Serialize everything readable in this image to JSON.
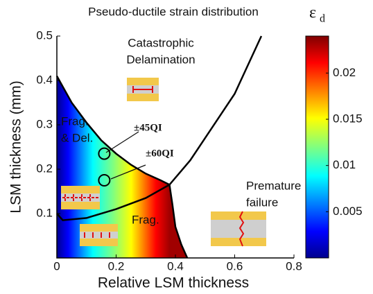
{
  "chart_data": {
    "type": "contour",
    "title": "Pseudo-ductile strain distribution",
    "x_label": "Relative LSM thickness",
    "y_label": "LSM thickness (mm)",
    "xlim": [
      0,
      0.8
    ],
    "xticks": [
      0,
      0.2,
      0.4,
      0.6,
      0.8
    ],
    "ylim": [
      0,
      0.5
    ],
    "yticks": [
      0.1,
      0.2,
      0.3,
      0.4,
      0.5
    ],
    "colorbar": {
      "label": "ε",
      "label_subscript": "d",
      "clim": [
        0,
        0.024
      ],
      "ticks": [
        0.005,
        0.01,
        0.015,
        0.02
      ]
    },
    "boundaries": [
      {
        "color": "#000000",
        "x": [
          0,
          0.05,
          0.1,
          0.15,
          0.2,
          0.25,
          0.3,
          0.35,
          0.38
        ],
        "y": [
          0.41,
          0.35,
          0.305,
          0.265,
          0.235,
          0.21,
          0.19,
          0.175,
          0.165
        ]
      },
      {
        "color": "#000000",
        "x": [
          0,
          0.02,
          0.1,
          0.2,
          0.3,
          0.38,
          0.45,
          0.52,
          0.6,
          0.69
        ],
        "y": [
          0.1,
          0.085,
          0.09,
          0.11,
          0.135,
          0.165,
          0.22,
          0.29,
          0.37,
          0.5
        ]
      },
      {
        "color": "#000000",
        "x": [
          0.38,
          0.39,
          0.4,
          0.42,
          0.44
        ],
        "y": [
          0.165,
          0.12,
          0.07,
          0.03,
          0
        ]
      }
    ],
    "region_labels": [
      [
        "Catastrophic",
        "Delamination"
      ],
      [
        "Frag.",
        "& Del."
      ],
      [
        "Premature",
        "failure"
      ],
      [
        "Frag."
      ]
    ],
    "points": [
      {
        "label": "±45QI",
        "x": 0.16,
        "y": 0.235
      },
      {
        "label": "±60QI",
        "x": 0.16,
        "y": 0.175
      }
    ]
  }
}
